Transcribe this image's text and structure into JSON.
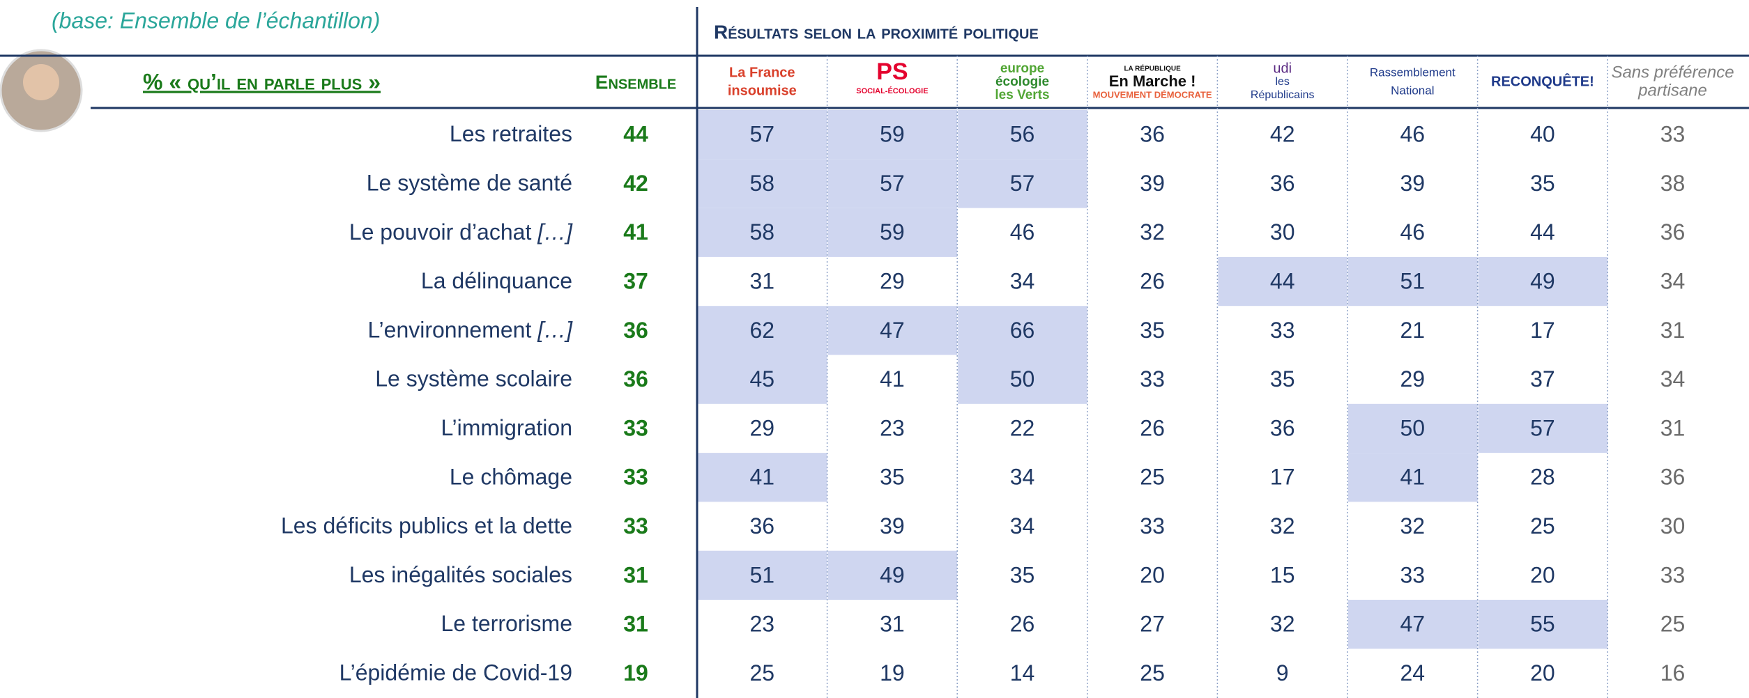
{
  "header": {
    "base": "(base: Ensemble de l’échantillon)",
    "section_title": "Résultats selon la proximité politique",
    "metric": "% « qu’il en parle plus »",
    "ensemble": "Ensemble"
  },
  "columns": [
    [
      "La France",
      "insoumise"
    ],
    [
      "PS",
      "SOCIAL-ÉCOLOGIE"
    ],
    [
      "europe",
      "écologie",
      "les Verts"
    ],
    [
      "LA RÉPUBLIQUE",
      "En Marche !",
      "MOUVEMENT DÉMOCRATE"
    ],
    [
      "udi",
      "les",
      "Républicains"
    ],
    [
      "Rassemblement",
      "National"
    ],
    [
      "RECONQUÊTE!"
    ],
    [
      "Sans préférence",
      "partisane"
    ]
  ],
  "rows": [
    {
      "label": "Les retraites",
      "ensemble": 44,
      "values": [
        57,
        59,
        56,
        36,
        42,
        46,
        40,
        33
      ],
      "highlight": [
        true,
        true,
        true,
        false,
        false,
        false,
        false,
        false
      ]
    },
    {
      "label": "Le système de santé",
      "ensemble": 42,
      "values": [
        58,
        57,
        57,
        39,
        36,
        39,
        35,
        38
      ],
      "highlight": [
        true,
        true,
        true,
        false,
        false,
        false,
        false,
        false
      ]
    },
    {
      "label": "Le pouvoir d’achat",
      "note": "[…]",
      "ensemble": 41,
      "values": [
        58,
        59,
        46,
        32,
        30,
        46,
        44,
        36
      ],
      "highlight": [
        true,
        true,
        false,
        false,
        false,
        false,
        false,
        false
      ]
    },
    {
      "label": "La délinquance",
      "ensemble": 37,
      "values": [
        31,
        29,
        34,
        26,
        44,
        51,
        49,
        34
      ],
      "highlight": [
        false,
        false,
        false,
        false,
        true,
        true,
        true,
        false
      ]
    },
    {
      "label": "L’environnement",
      "note": "[…]",
      "ensemble": 36,
      "values": [
        62,
        47,
        66,
        35,
        33,
        21,
        17,
        31
      ],
      "highlight": [
        true,
        true,
        true,
        false,
        false,
        false,
        false,
        false
      ]
    },
    {
      "label": "Le système scolaire",
      "ensemble": 36,
      "values": [
        45,
        41,
        50,
        33,
        35,
        29,
        37,
        34
      ],
      "highlight": [
        true,
        false,
        true,
        false,
        false,
        false,
        false,
        false
      ]
    },
    {
      "label": "L’immigration",
      "ensemble": 33,
      "values": [
        29,
        23,
        22,
        26,
        36,
        50,
        57,
        31
      ],
      "highlight": [
        false,
        false,
        false,
        false,
        false,
        true,
        true,
        false
      ]
    },
    {
      "label": "Le chômage",
      "ensemble": 33,
      "values": [
        41,
        35,
        34,
        25,
        17,
        41,
        28,
        36
      ],
      "highlight": [
        true,
        false,
        false,
        false,
        false,
        true,
        false,
        false
      ]
    },
    {
      "label": "Les déficits publics et la dette",
      "ensemble": 33,
      "values": [
        36,
        39,
        34,
        33,
        32,
        32,
        25,
        30
      ],
      "highlight": [
        false,
        false,
        false,
        false,
        false,
        false,
        false,
        false
      ]
    },
    {
      "label": "Les inégalités sociales",
      "ensemble": 31,
      "values": [
        51,
        49,
        35,
        20,
        15,
        33,
        20,
        33
      ],
      "highlight": [
        true,
        true,
        false,
        false,
        false,
        false,
        false,
        false
      ]
    },
    {
      "label": "Le terrorisme",
      "ensemble": 31,
      "values": [
        23,
        31,
        26,
        27,
        32,
        47,
        55,
        25
      ],
      "highlight": [
        false,
        false,
        false,
        false,
        false,
        true,
        true,
        false
      ]
    },
    {
      "label": "L’épidémie de Covid-19",
      "ensemble": 19,
      "values": [
        25,
        19,
        14,
        25,
        9,
        24,
        20,
        16
      ],
      "highlight": [
        false,
        false,
        false,
        false,
        false,
        false,
        false,
        false
      ]
    }
  ]
}
